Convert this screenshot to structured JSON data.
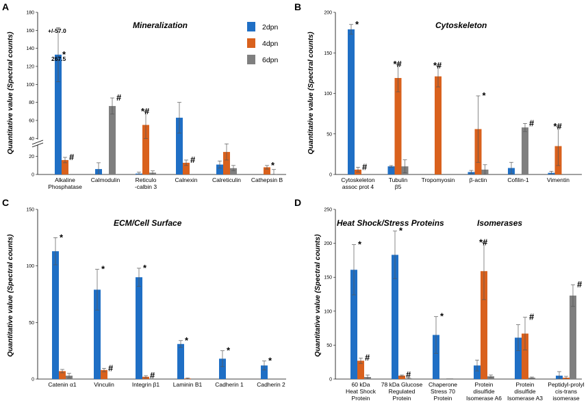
{
  "colors": {
    "2dpn": "#1f6fc5",
    "4dpn": "#d9611d",
    "6dpn": "#7f7f7f"
  },
  "legend": [
    "2dpn",
    "4dpn",
    "6dpn"
  ],
  "ylabel": "Quantitative value (Spectral counts)",
  "chart_data": [
    {
      "type": "bar",
      "letter": "A",
      "title": "Mineralization",
      "ylim": [
        0,
        180
      ],
      "yticks": [
        0,
        20,
        40,
        60,
        80,
        100,
        120,
        140,
        160,
        180
      ],
      "axis_break": true,
      "categories": [
        [
          "Alkaline",
          "Phosphatase"
        ],
        [
          "Calmodulin"
        ],
        [
          "Reticulo",
          "-calbin 3"
        ],
        [
          "Calnexin"
        ],
        [
          "Calreticulin"
        ],
        [
          "Cathepsin B"
        ]
      ],
      "series": [
        {
          "name": "2dpn",
          "values": [
            267.5,
            6,
            1,
            63,
            11,
            0
          ],
          "err": [
            57,
            7,
            1.5,
            17,
            4,
            0
          ]
        },
        {
          "name": "4dpn",
          "values": [
            16,
            0,
            55,
            13,
            25,
            8
          ],
          "err": [
            3,
            0,
            15,
            3,
            9,
            2
          ]
        },
        {
          "name": "6dpn",
          "values": [
            0,
            76,
            2,
            0,
            7,
            0.5
          ],
          "err": [
            0,
            9,
            2,
            0,
            3,
            5
          ]
        }
      ],
      "annotations": {
        "value_label": "267.5",
        "error_label": "+/-57.0"
      },
      "markers": [
        [
          "*",
          "#",
          ""
        ],
        [
          "",
          "",
          "#"
        ],
        [
          "",
          "*#",
          ""
        ],
        [
          "",
          "#",
          ""
        ],
        [
          "",
          "",
          ""
        ],
        [
          "",
          "*",
          ""
        ]
      ]
    },
    {
      "type": "bar",
      "letter": "B",
      "title": "Cytoskeleton",
      "ylim": [
        0,
        200
      ],
      "yticks": [
        0,
        50,
        100,
        150,
        200
      ],
      "categories": [
        [
          "Cytoskeleton",
          "assoc prot 4"
        ],
        [
          "Tubulin",
          "β5"
        ],
        [
          "Tropomyosin"
        ],
        [
          "β-actin"
        ],
        [
          "Cofilin-1"
        ],
        [
          "Vimentin"
        ]
      ],
      "series": [
        {
          "name": "2dpn",
          "values": [
            179,
            10,
            0,
            3,
            8,
            2
          ],
          "err": [
            6,
            1,
            0,
            2,
            7,
            2
          ]
        },
        {
          "name": "4dpn",
          "values": [
            6,
            119,
            121,
            56,
            0,
            35
          ],
          "err": [
            3,
            17,
            13,
            41,
            0,
            24
          ]
        },
        {
          "name": "6dpn",
          "values": [
            0,
            10,
            0,
            6,
            58,
            0
          ],
          "err": [
            0,
            8,
            0,
            6,
            5,
            0
          ]
        }
      ],
      "markers": [
        [
          "*",
          "#",
          ""
        ],
        [
          "",
          "*#",
          ""
        ],
        [
          "",
          "*#",
          ""
        ],
        [
          "",
          "*",
          ""
        ],
        [
          "",
          "",
          "#"
        ],
        [
          "",
          "*#",
          ""
        ]
      ]
    },
    {
      "type": "bar",
      "letter": "C",
      "title": "ECM/Cell Surface",
      "ylim": [
        0,
        150
      ],
      "yticks": [
        0,
        50,
        100,
        150
      ],
      "categories": [
        [
          "Catenin α1"
        ],
        [
          "Vinculin"
        ],
        [
          "Integrin β1"
        ],
        [
          "Laminin B1"
        ],
        [
          "Cadherin 1"
        ],
        [
          "Cadherin 2"
        ]
      ],
      "series": [
        {
          "name": "2dpn",
          "values": [
            113,
            79,
            90,
            31,
            18,
            12
          ],
          "err": [
            12,
            18,
            8,
            3,
            7,
            4
          ]
        },
        {
          "name": "4dpn",
          "values": [
            7,
            8,
            2,
            0.5,
            0,
            0
          ],
          "err": [
            1.5,
            1.5,
            1,
            0.5,
            0,
            0
          ]
        },
        {
          "name": "6dpn",
          "values": [
            3,
            0,
            0,
            0,
            0,
            0
          ],
          "err": [
            2,
            0,
            0,
            0,
            0,
            0
          ]
        }
      ],
      "markers": [
        [
          "*",
          "",
          ""
        ],
        [
          "*",
          "#",
          ""
        ],
        [
          "*",
          "#",
          ""
        ],
        [
          "*",
          "",
          ""
        ],
        [
          "*",
          "",
          ""
        ],
        [
          "*",
          "",
          ""
        ]
      ]
    },
    {
      "type": "bar",
      "letter": "D",
      "title": "Heat Shock/Stress Proteins",
      "title2": "Isomerases",
      "ylim": [
        0,
        250
      ],
      "yticks": [
        0,
        50,
        100,
        150,
        200,
        250
      ],
      "categories": [
        [
          "60 kDa",
          "Heat Shock",
          "Protein"
        ],
        [
          "78 kDa Glucose",
          "Regulated",
          "Protein"
        ],
        [
          "Chaperone",
          "Stress 70",
          "Protein"
        ],
        [
          "Protein",
          "disulfide",
          "Isomerase A6"
        ],
        [
          "Protein",
          "disulfide",
          "Isomerase A3"
        ],
        [
          "Peptidyl-prolyl",
          "cis-trans",
          "isomerase"
        ]
      ],
      "series": [
        {
          "name": "2dpn",
          "values": [
            161,
            183,
            65,
            20,
            61,
            5
          ],
          "err": [
            37,
            35,
            27,
            8,
            19,
            6
          ]
        },
        {
          "name": "4dpn",
          "values": [
            27,
            5,
            0,
            159,
            67,
            2
          ],
          "err": [
            4,
            1,
            0,
            42,
            24,
            2
          ]
        },
        {
          "name": "6dpn",
          "values": [
            3,
            1,
            1,
            4,
            2,
            123
          ],
          "err": [
            3,
            1,
            0,
            2,
            1,
            16
          ]
        }
      ],
      "markers": [
        [
          "*",
          "#",
          ""
        ],
        [
          "*",
          "#",
          ""
        ],
        [
          "*",
          "",
          ""
        ],
        [
          "",
          "*#",
          ""
        ],
        [
          "",
          "#",
          ""
        ],
        [
          "",
          "",
          "#"
        ]
      ]
    }
  ]
}
